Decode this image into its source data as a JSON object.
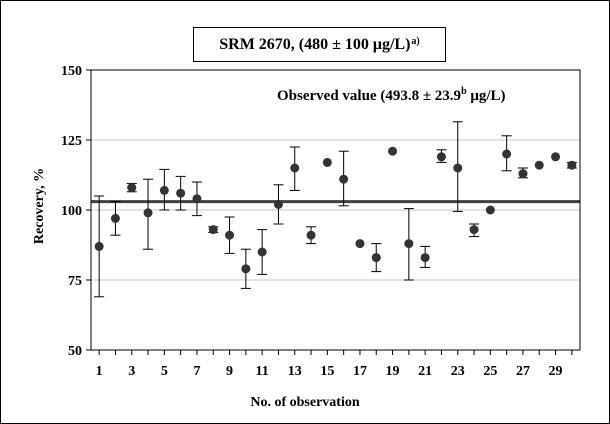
{
  "chart_data": {
    "type": "scatter",
    "title": {
      "main": "SRM 2670,  (480 ± 100 μg/L)",
      "sup": "a)"
    },
    "annotation": {
      "main": "Observed value (493.8 ± 23.9",
      "sup": "b",
      "tail": " μg/L)"
    },
    "xlabel": "No. of observation",
    "ylabel": "Recovery, %",
    "xlim": [
      0.5,
      30.5
    ],
    "ylim": [
      50,
      150
    ],
    "x_ticks": [
      1,
      3,
      5,
      7,
      9,
      11,
      13,
      15,
      17,
      19,
      21,
      23,
      25,
      27,
      29
    ],
    "y_ticks": [
      50,
      75,
      100,
      125,
      150
    ],
    "y_tick_labels": [
      "50",
      "75",
      "100",
      "125",
      "150"
    ],
    "grid": true,
    "mean_line": 103,
    "marker_color": "#333333",
    "line_color": "#404040",
    "points": [
      {
        "x": 1,
        "y": 87,
        "low": 69,
        "high": 105
      },
      {
        "x": 2,
        "y": 97,
        "low": 91,
        "high": 103
      },
      {
        "x": 3,
        "y": 108,
        "low": 106.5,
        "high": 109.5
      },
      {
        "x": 4,
        "y": 99,
        "low": 86,
        "high": 111
      },
      {
        "x": 5,
        "y": 107,
        "low": 100,
        "high": 114.5
      },
      {
        "x": 6,
        "y": 106,
        "low": 100,
        "high": 112
      },
      {
        "x": 7,
        "y": 104,
        "low": 98,
        "high": 110
      },
      {
        "x": 8,
        "y": 93,
        "low": 92,
        "high": 94
      },
      {
        "x": 9,
        "y": 91,
        "low": 84.5,
        "high": 97.5
      },
      {
        "x": 10,
        "y": 79,
        "low": 72,
        "high": 86
      },
      {
        "x": 11,
        "y": 85,
        "low": 77,
        "high": 93
      },
      {
        "x": 12,
        "y": 102,
        "low": 95,
        "high": 109
      },
      {
        "x": 13,
        "y": 115,
        "low": 107,
        "high": 122.5
      },
      {
        "x": 14,
        "y": 91,
        "low": 88,
        "high": 94
      },
      {
        "x": 15,
        "y": 117,
        "low": 117,
        "high": 117
      },
      {
        "x": 16,
        "y": 111,
        "low": 101.5,
        "high": 121
      },
      {
        "x": 17,
        "y": 88,
        "low": 88,
        "high": 88
      },
      {
        "x": 18,
        "y": 83,
        "low": 78,
        "high": 88
      },
      {
        "x": 19,
        "y": 121,
        "low": 121,
        "high": 121
      },
      {
        "x": 20,
        "y": 88,
        "low": 75,
        "high": 100.5
      },
      {
        "x": 21,
        "y": 83,
        "low": 79.5,
        "high": 87
      },
      {
        "x": 22,
        "y": 119,
        "low": 117,
        "high": 121.5
      },
      {
        "x": 23,
        "y": 115,
        "low": 99.5,
        "high": 131.5
      },
      {
        "x": 24,
        "y": 93,
        "low": 90.5,
        "high": 95
      },
      {
        "x": 25,
        "y": 100,
        "low": 100,
        "high": 100
      },
      {
        "x": 26,
        "y": 120,
        "low": 114,
        "high": 126.5
      },
      {
        "x": 27,
        "y": 113,
        "low": 111.5,
        "high": 115
      },
      {
        "x": 28,
        "y": 116,
        "low": 116,
        "high": 116
      },
      {
        "x": 29,
        "y": 119,
        "low": 119,
        "high": 119
      },
      {
        "x": 30,
        "y": 116,
        "low": 115,
        "high": 117
      }
    ]
  }
}
